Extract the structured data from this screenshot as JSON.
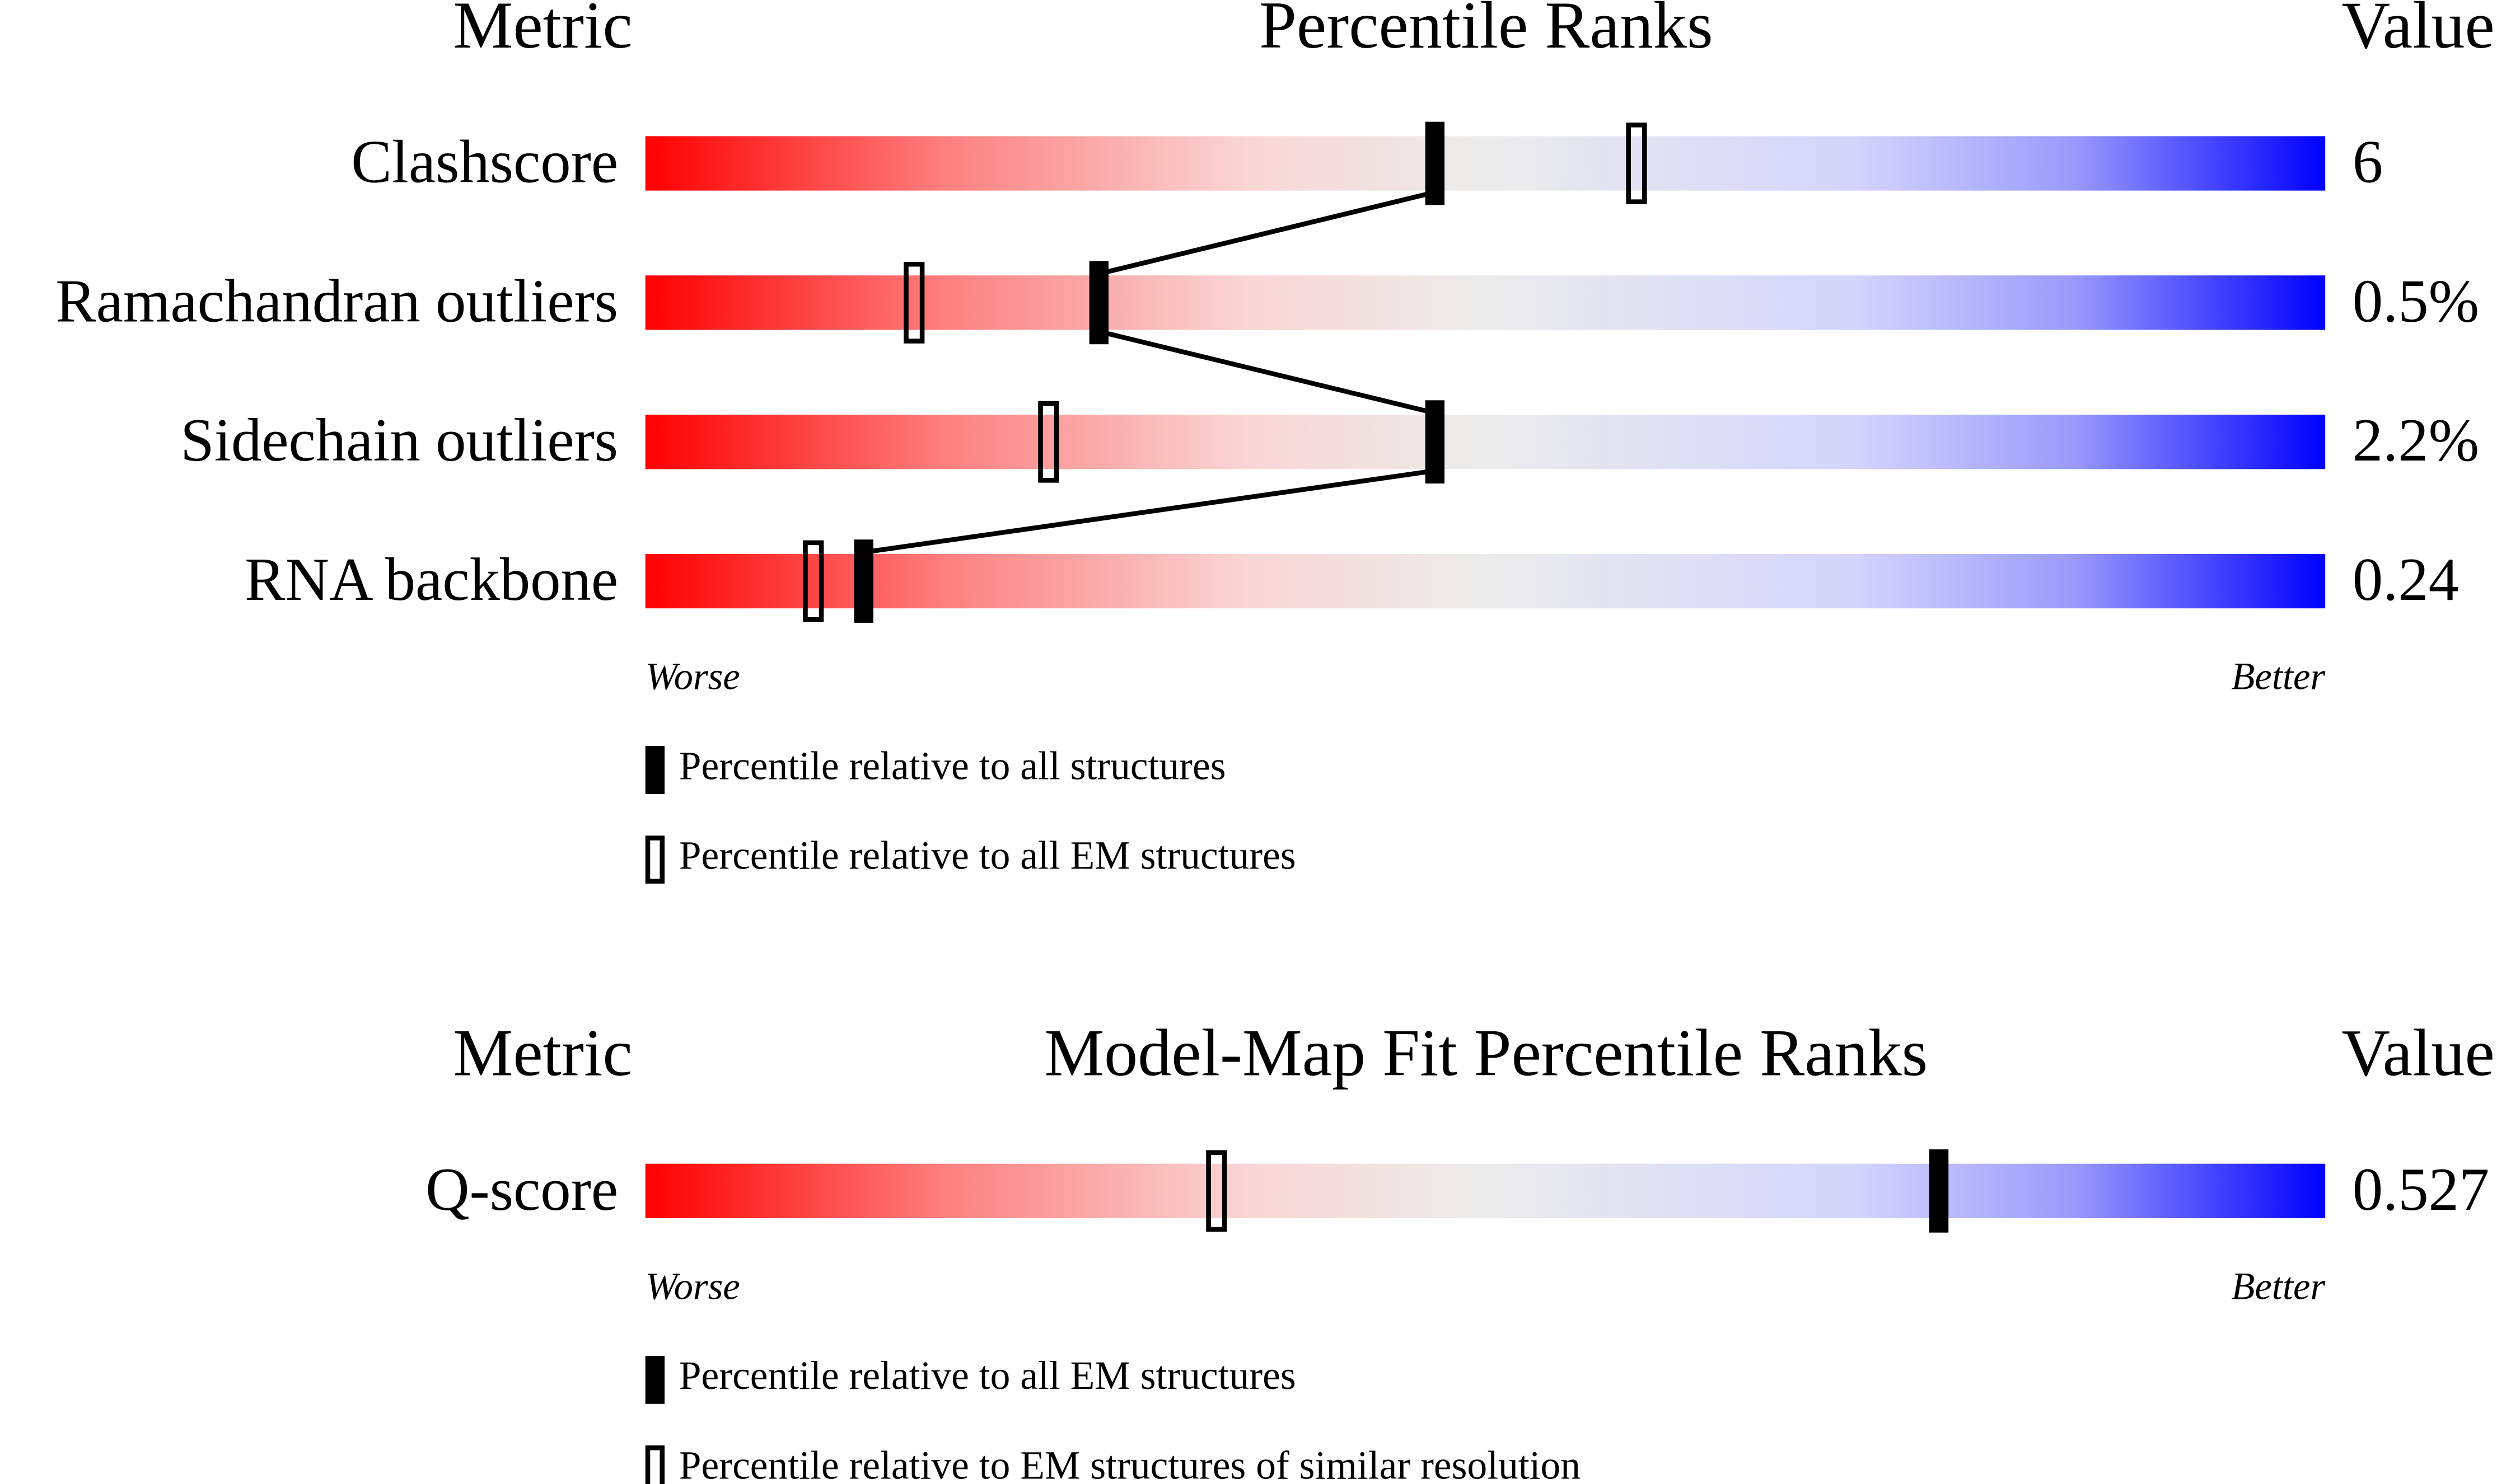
{
  "chart_data": [
    {
      "type": "percentile",
      "metric_header": "Metric",
      "title": "Percentile Ranks",
      "value_header": "Value",
      "categories": [
        "Clashscore",
        "Ramachandran outliers",
        "Sidechain outliers",
        "RNA backbone"
      ],
      "metric_values": [
        "6",
        "0.5%",
        "2.2%",
        "0.24"
      ],
      "series": [
        {
          "name": "Percentile relative to all structures",
          "color": "#000000",
          "marker": "filled",
          "values": [
            47,
            27,
            47,
            13
          ]
        },
        {
          "name": "Percentile relative to all EM structures",
          "color": "#000000",
          "marker": "outline",
          "values": [
            59,
            16,
            24,
            10
          ]
        }
      ],
      "xlim": [
        0,
        100
      ],
      "x_low_label": "Worse",
      "x_high_label": "Better"
    },
    {
      "type": "percentile",
      "metric_header": "Metric",
      "title": "Model-Map Fit Percentile Ranks",
      "value_header": "Value",
      "categories": [
        "Q-score"
      ],
      "metric_values": [
        "0.527"
      ],
      "series": [
        {
          "name": "Percentile relative to all EM structures",
          "color": "#000000",
          "marker": "filled",
          "values": [
            77
          ]
        },
        {
          "name": "Percentile relative to EM structures of similar resolution",
          "color": "#000000",
          "marker": "outline",
          "values": [
            34
          ]
        }
      ],
      "xlim": [
        0,
        100
      ],
      "x_low_label": "Worse",
      "x_high_label": "Better"
    }
  ]
}
